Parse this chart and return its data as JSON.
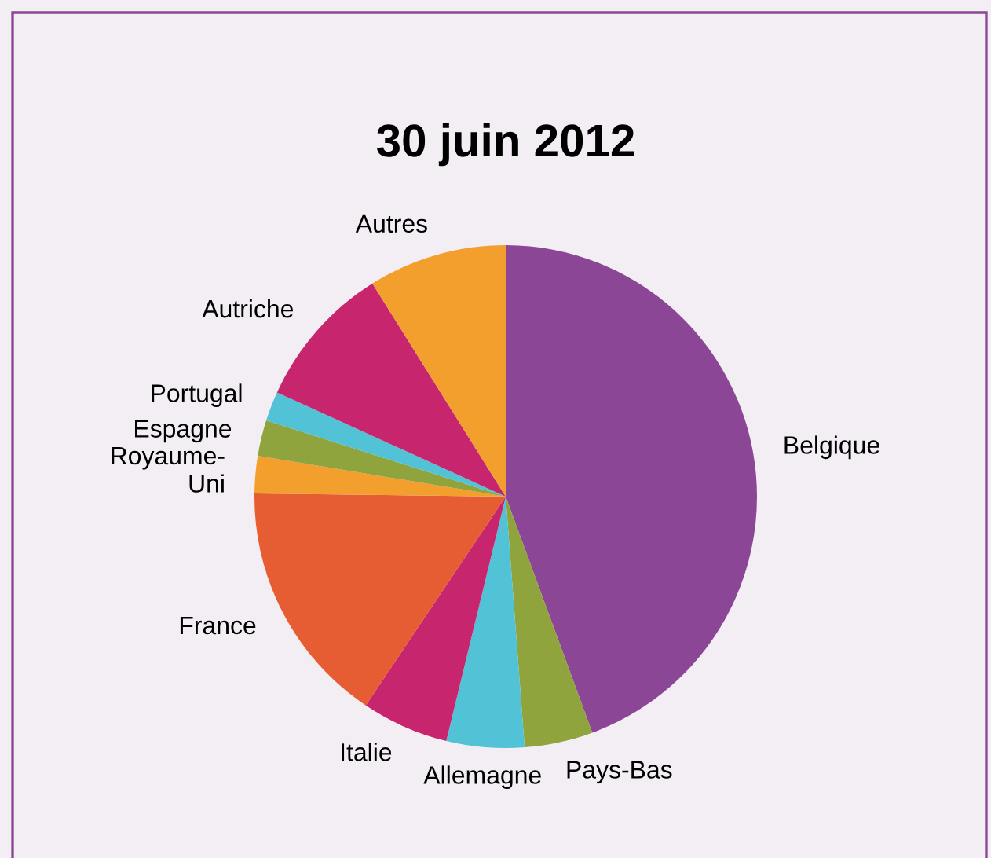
{
  "chart_data": {
    "type": "pie",
    "title": "30 juin 2012",
    "categories": [
      "Belgique",
      "Pays-Bas",
      "Allemagne",
      "Italie",
      "France",
      "Royaume-\nUni",
      "Espagne",
      "Portugal",
      "Autriche",
      "Autres"
    ],
    "values": [
      44.4,
      4.4,
      5.0,
      5.6,
      15.8,
      2.4,
      2.3,
      1.9,
      9.3,
      8.9
    ],
    "colors": [
      "#8b4796",
      "#8fa43c",
      "#52c3d6",
      "#c7266e",
      "#e65c33",
      "#f29f2e",
      "#8fa43c",
      "#52c3d6",
      "#c7266e",
      "#f29f2e"
    ],
    "legend": false
  }
}
